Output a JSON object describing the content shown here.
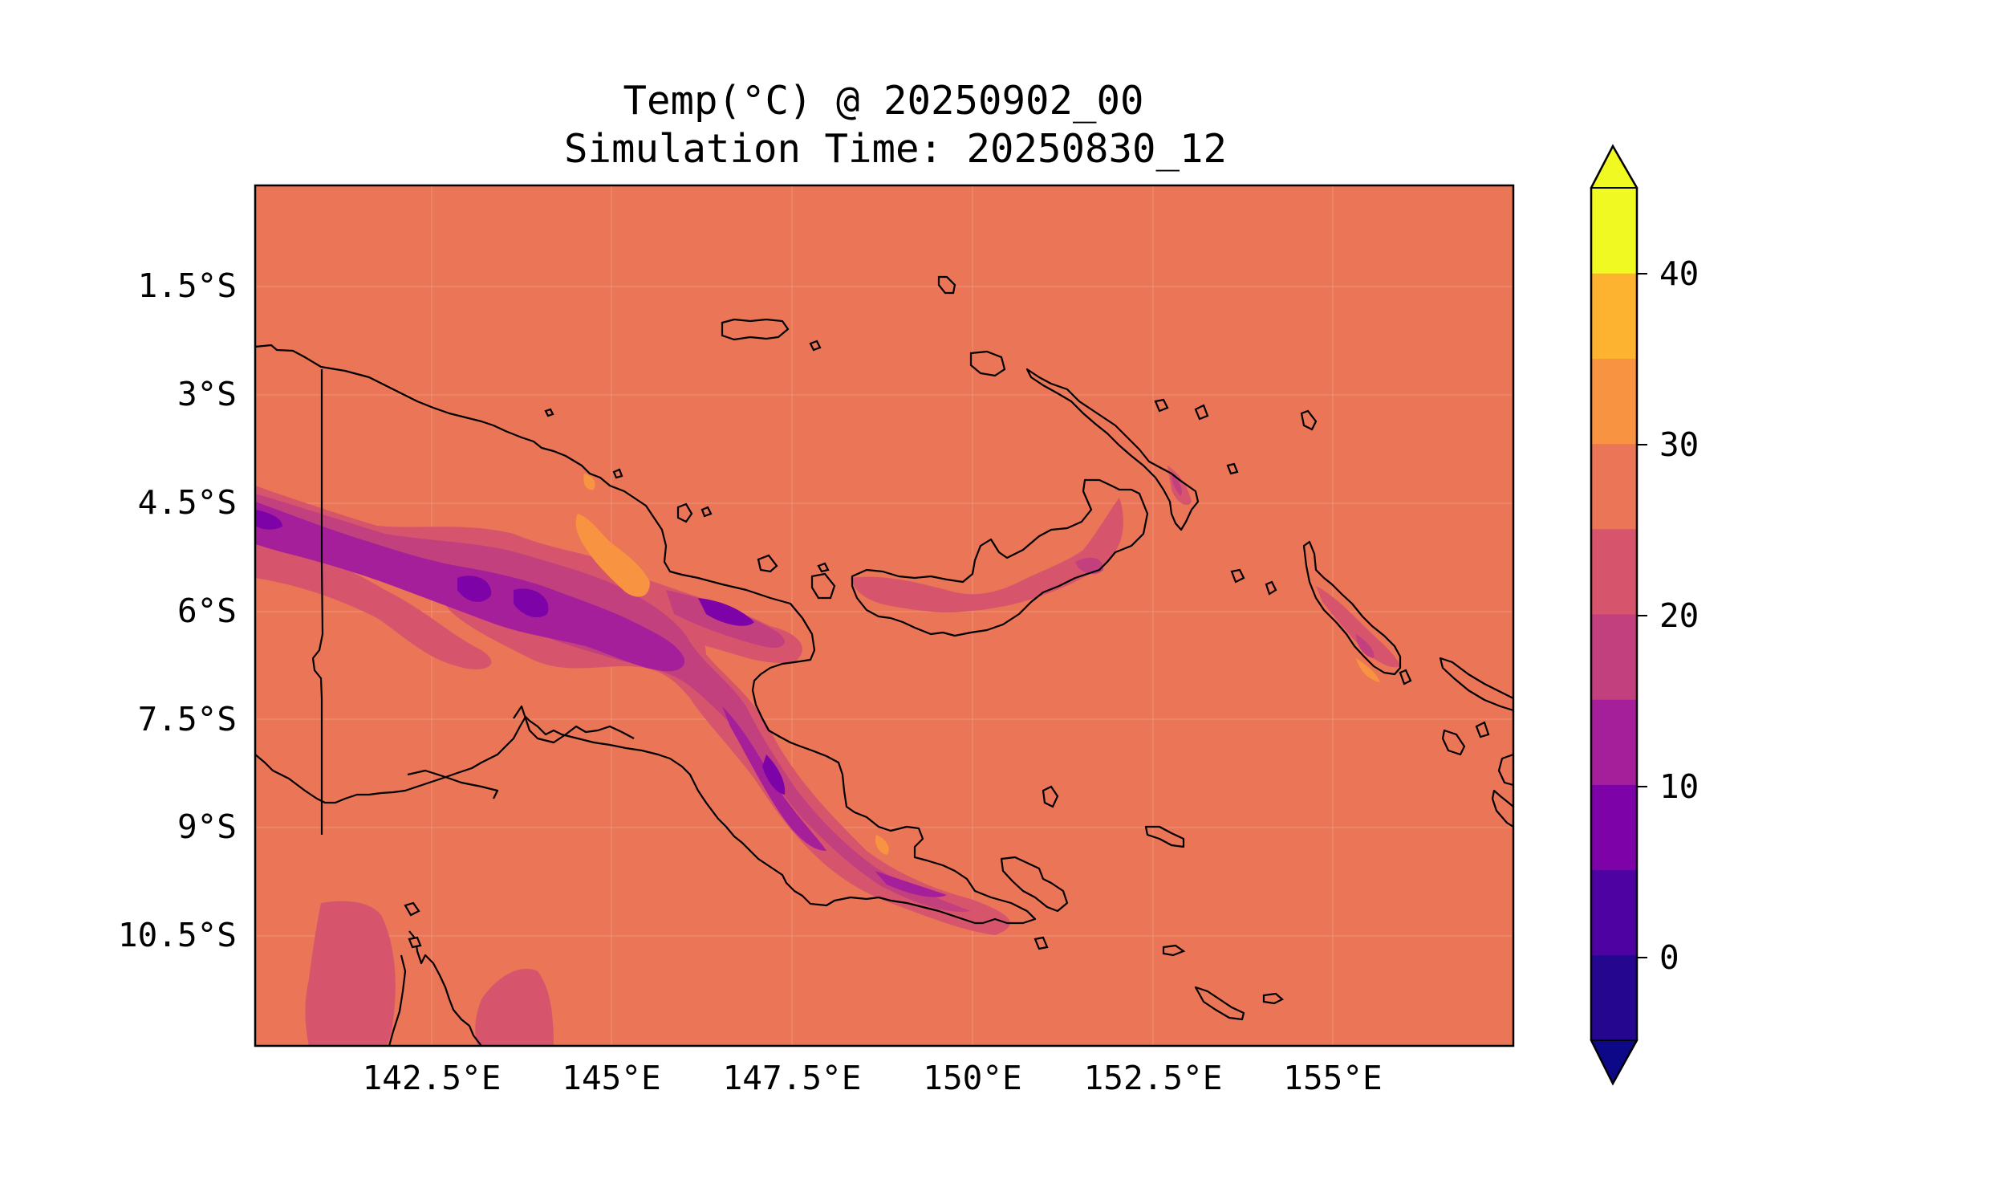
{
  "title": {
    "line1": "Temp(°C) @ 20250902_00",
    "line2": "Simulation Time: 20250830_12"
  },
  "map": {
    "lat_ticks": [
      "1.5°S",
      "3°S",
      "4.5°S",
      "6°S",
      "7.5°S",
      "9°S",
      "10.5°S"
    ],
    "lon_ticks": [
      "142.5°E",
      "145°E",
      "147.5°E",
      "150°E",
      "152.5°E",
      "155°E"
    ],
    "background_color": "#ea7557"
  },
  "colorbar": {
    "tick_labels": [
      "40",
      "30",
      "20",
      "10",
      "0"
    ],
    "levels": [
      -5,
      0,
      5,
      10,
      15,
      20,
      25,
      30,
      35,
      40,
      45
    ],
    "colors": [
      "#24068f",
      "#4f02a2",
      "#7d03a8",
      "#a51f9b",
      "#c3407f",
      "#d6556d",
      "#ea7557",
      "#f89441",
      "#fdb32f",
      "#f0f921"
    ],
    "under_color": "#0d0887",
    "over_color": "#f0f921",
    "colormap": "plasma",
    "extend": "both"
  }
}
